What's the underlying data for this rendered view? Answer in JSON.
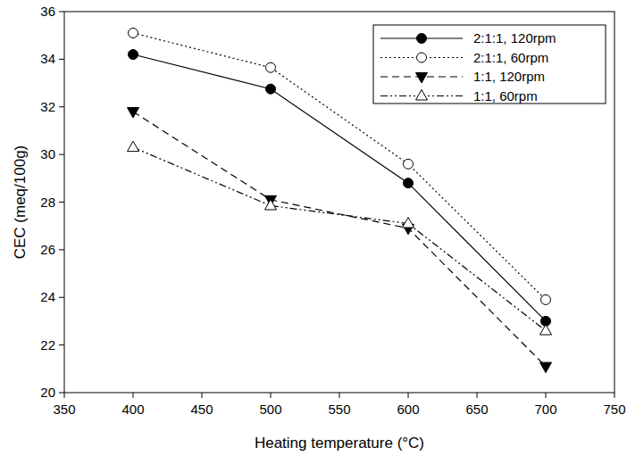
{
  "chart_data": {
    "type": "line",
    "x_label": "Heating temperature (°C)",
    "y_label": "CEC (meq/100g)",
    "x": [
      400,
      500,
      600,
      700
    ],
    "xlim": [
      350,
      750
    ],
    "xticks": [
      350,
      400,
      450,
      500,
      550,
      600,
      650,
      700,
      750
    ],
    "ylim": [
      20,
      36
    ],
    "yticks": [
      20,
      22,
      24,
      26,
      28,
      30,
      32,
      34,
      36
    ],
    "grid": false,
    "legend": "upper right",
    "series": [
      {
        "name": "2:1:1, 120rpm",
        "color": "#000000",
        "marker": "circle",
        "line_style": "solid",
        "values": [
          34.2,
          32.75,
          28.8,
          23.0
        ]
      },
      {
        "name": "2:1:1, 60rpm",
        "color": "#000000",
        "marker": "circle-open",
        "line_style": "dotted",
        "values": [
          35.1,
          33.65,
          29.6,
          23.9
        ]
      },
      {
        "name": "1:1, 120rpm",
        "color": "#000000",
        "marker": "triangle-down",
        "line_style": "dashed",
        "values": [
          31.8,
          28.1,
          26.9,
          21.1
        ]
      },
      {
        "name": "1:1, 60rpm",
        "color": "#000000",
        "marker": "triangle-up-open",
        "line_style": "dashdotdot",
        "values": [
          30.3,
          27.85,
          27.1,
          22.6
        ]
      }
    ]
  }
}
